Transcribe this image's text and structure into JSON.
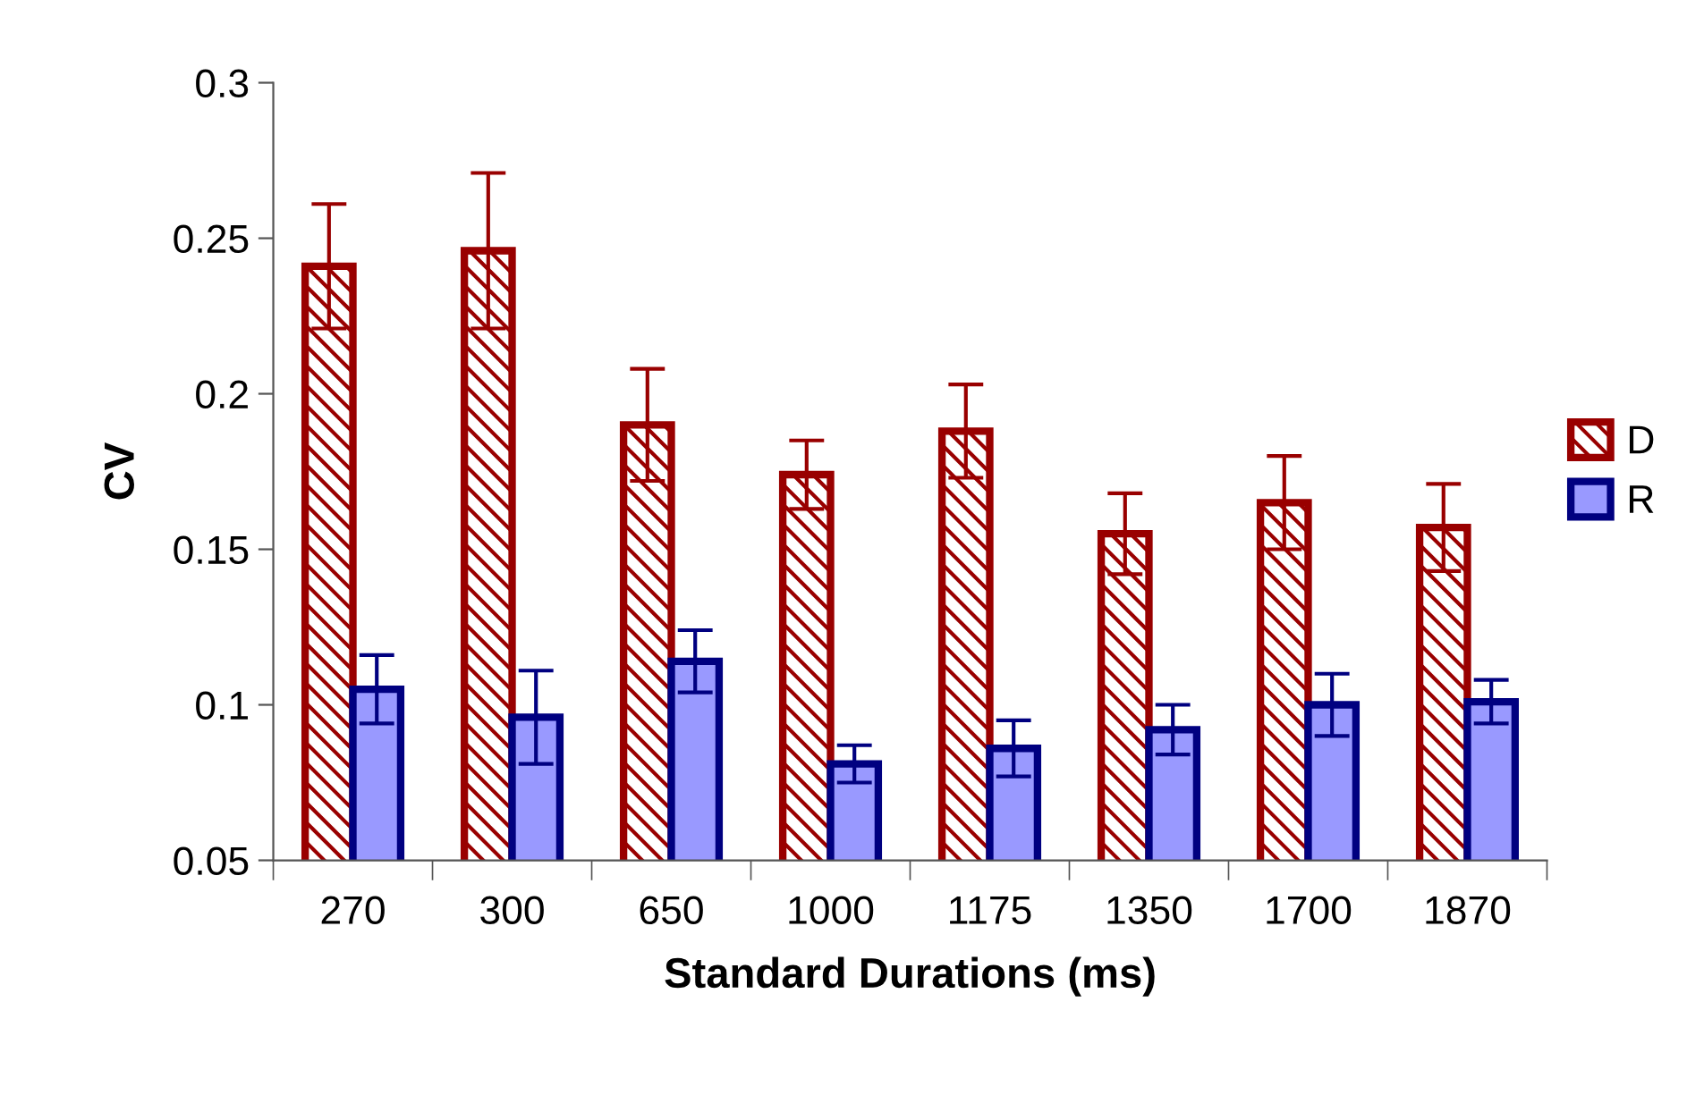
{
  "chart_data": {
    "type": "bar",
    "xlabel": "Standard Durations (ms)",
    "ylabel": "CV",
    "categories": [
      "270",
      "300",
      "650",
      "1000",
      "1175",
      "1350",
      "1700",
      "1870"
    ],
    "series": [
      {
        "name": "D",
        "color": "#990000",
        "values": [
          0.241,
          0.246,
          0.19,
          0.174,
          0.188,
          0.155,
          0.165,
          0.157
        ],
        "errors": [
          0.02,
          0.025,
          0.018,
          0.011,
          0.015,
          0.013,
          0.015,
          0.014
        ]
      },
      {
        "name": "R",
        "color": "#9999ff",
        "values": [
          0.105,
          0.096,
          0.114,
          0.081,
          0.086,
          0.092,
          0.1,
          0.101
        ],
        "errors": [
          0.011,
          0.015,
          0.01,
          0.006,
          0.009,
          0.008,
          0.01,
          0.007
        ]
      }
    ],
    "ylim": [
      0.05,
      0.3
    ],
    "yticks": [
      0.05,
      0.1,
      0.15,
      0.2,
      0.25,
      0.3
    ],
    "grid": false,
    "legend": "right"
  }
}
